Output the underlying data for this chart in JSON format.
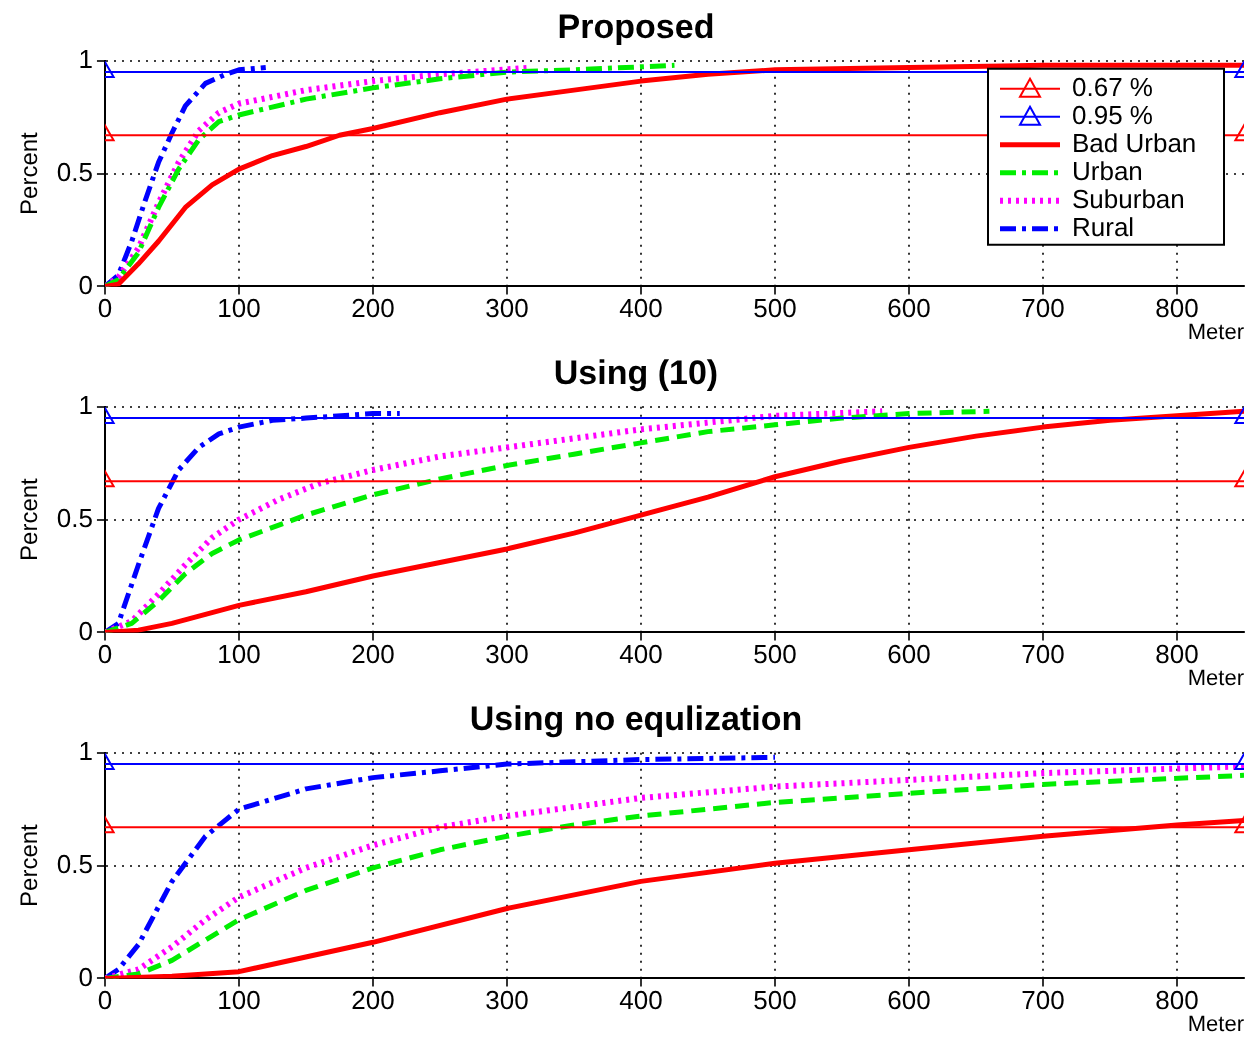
{
  "chart_data": [
    {
      "type": "line",
      "title": "Proposed",
      "xlabel": "Meter",
      "ylabel": "Percent",
      "xlim": [
        0,
        850
      ],
      "ylim": [
        0,
        1
      ],
      "xticks": [
        0,
        100,
        200,
        300,
        400,
        500,
        600,
        700,
        800
      ],
      "yticks": [
        0,
        0.5,
        1
      ],
      "grid": true,
      "legend": "top right",
      "series": [
        {
          "name": "0.67 %",
          "color": "#ff0000",
          "marker": "triangle",
          "line_style": "solid",
          "x": [
            0,
            850
          ],
          "values": [
            0.67,
            0.67
          ]
        },
        {
          "name": "0.95 %",
          "color": "#0000ff",
          "marker": "triangle",
          "line_style": "solid",
          "x": [
            0,
            850
          ],
          "values": [
            0.95,
            0.95
          ]
        },
        {
          "name": "Bad Urban",
          "color": "#ff0000",
          "line_style": "solid",
          "x": [
            0,
            10,
            25,
            40,
            60,
            80,
            100,
            125,
            150,
            175,
            200,
            250,
            300,
            350,
            400,
            450,
            500,
            600,
            700,
            850
          ],
          "values": [
            0,
            0.01,
            0.1,
            0.2,
            0.35,
            0.45,
            0.52,
            0.58,
            0.62,
            0.67,
            0.7,
            0.77,
            0.83,
            0.87,
            0.91,
            0.94,
            0.96,
            0.97,
            0.98,
            0.98
          ]
        },
        {
          "name": "Urban",
          "color": "#00ee00",
          "line_style": "dashdot",
          "x": [
            0,
            10,
            25,
            40,
            55,
            70,
            85,
            100,
            150,
            200,
            250,
            300,
            350,
            425
          ],
          "values": [
            0,
            0.03,
            0.15,
            0.35,
            0.52,
            0.65,
            0.73,
            0.76,
            0.83,
            0.88,
            0.92,
            0.95,
            0.96,
            0.98
          ]
        },
        {
          "name": "Suburban",
          "color": "#ff00ff",
          "line_style": "dotted",
          "x": [
            0,
            10,
            25,
            40,
            55,
            70,
            85,
            100,
            150,
            200,
            250,
            318
          ],
          "values": [
            0,
            0.04,
            0.17,
            0.37,
            0.55,
            0.69,
            0.77,
            0.81,
            0.87,
            0.91,
            0.94,
            0.97
          ]
        },
        {
          "name": "Rural",
          "color": "#0000ff",
          "line_style": "dashdot",
          "x": [
            0,
            10,
            20,
            30,
            40,
            50,
            60,
            75,
            90,
            100,
            120
          ],
          "values": [
            0,
            0.05,
            0.2,
            0.38,
            0.55,
            0.68,
            0.8,
            0.9,
            0.94,
            0.96,
            0.97
          ]
        }
      ]
    },
    {
      "type": "line",
      "title": "Using (10)",
      "xlabel": "Meter",
      "ylabel": "Percent",
      "xlim": [
        0,
        850
      ],
      "ylim": [
        0,
        1
      ],
      "xticks": [
        0,
        100,
        200,
        300,
        400,
        500,
        600,
        700,
        800
      ],
      "yticks": [
        0,
        0.5,
        1
      ],
      "grid": true,
      "series": [
        {
          "color": "#ff0000",
          "marker": "triangle",
          "line_style": "solid",
          "x": [
            0,
            850
          ],
          "values": [
            0.67,
            0.67
          ]
        },
        {
          "color": "#0000ff",
          "marker": "triangle",
          "line_style": "solid",
          "x": [
            0,
            850
          ],
          "values": [
            0.95,
            0.95
          ]
        },
        {
          "color": "#ff0000",
          "line_style": "solid",
          "x": [
            0,
            25,
            50,
            75,
            100,
            150,
            200,
            250,
            300,
            350,
            400,
            450,
            500,
            550,
            600,
            650,
            700,
            750,
            800,
            850
          ],
          "values": [
            0,
            0.01,
            0.04,
            0.08,
            0.12,
            0.18,
            0.25,
            0.31,
            0.37,
            0.44,
            0.52,
            0.6,
            0.69,
            0.76,
            0.82,
            0.87,
            0.91,
            0.94,
            0.96,
            0.98
          ]
        },
        {
          "color": "#00ee00",
          "line_style": "dashed",
          "x": [
            0,
            20,
            40,
            60,
            80,
            100,
            150,
            200,
            250,
            300,
            350,
            400,
            450,
            500,
            550,
            600,
            660
          ],
          "values": [
            0,
            0.04,
            0.14,
            0.26,
            0.35,
            0.41,
            0.52,
            0.61,
            0.68,
            0.74,
            0.79,
            0.84,
            0.89,
            0.92,
            0.95,
            0.97,
            0.98
          ]
        },
        {
          "color": "#ff00ff",
          "line_style": "dotted",
          "x": [
            0,
            20,
            40,
            60,
            80,
            100,
            130,
            160,
            200,
            250,
            300,
            350,
            400,
            450,
            500,
            580
          ],
          "values": [
            0,
            0.05,
            0.17,
            0.3,
            0.42,
            0.5,
            0.59,
            0.66,
            0.72,
            0.78,
            0.82,
            0.86,
            0.9,
            0.93,
            0.96,
            0.98
          ]
        },
        {
          "color": "#0000ff",
          "line_style": "dashdot",
          "x": [
            0,
            10,
            25,
            40,
            55,
            70,
            85,
            100,
            125,
            150,
            200,
            220
          ],
          "values": [
            0,
            0.04,
            0.3,
            0.55,
            0.72,
            0.82,
            0.88,
            0.91,
            0.94,
            0.95,
            0.97,
            0.97
          ]
        }
      ]
    },
    {
      "type": "line",
      "title": "Using no equlization",
      "xlabel": "Meter",
      "ylabel": "Percent",
      "xlim": [
        0,
        850
      ],
      "ylim": [
        0,
        1
      ],
      "xticks": [
        0,
        100,
        200,
        300,
        400,
        500,
        600,
        700,
        800
      ],
      "yticks": [
        0,
        0.5,
        1
      ],
      "grid": true,
      "series": [
        {
          "color": "#ff0000",
          "marker": "triangle",
          "line_style": "solid",
          "x": [
            0,
            850
          ],
          "values": [
            0.67,
            0.67
          ]
        },
        {
          "color": "#0000ff",
          "marker": "triangle",
          "line_style": "solid",
          "x": [
            0,
            850
          ],
          "values": [
            0.95,
            0.95
          ]
        },
        {
          "color": "#ff0000",
          "line_style": "solid",
          "x": [
            0,
            50,
            100,
            200,
            300,
            400,
            500,
            600,
            700,
            800,
            850
          ],
          "values": [
            0,
            0.01,
            0.03,
            0.16,
            0.31,
            0.43,
            0.51,
            0.57,
            0.63,
            0.68,
            0.7
          ]
        },
        {
          "color": "#00ee00",
          "line_style": "dashed",
          "x": [
            0,
            25,
            50,
            75,
            100,
            150,
            200,
            250,
            300,
            350,
            400,
            500,
            600,
            700,
            850
          ],
          "values": [
            0,
            0.02,
            0.08,
            0.17,
            0.26,
            0.39,
            0.49,
            0.57,
            0.63,
            0.68,
            0.72,
            0.78,
            0.82,
            0.86,
            0.9
          ]
        },
        {
          "color": "#ff00ff",
          "line_style": "dotted",
          "x": [
            0,
            25,
            50,
            75,
            100,
            150,
            200,
            250,
            300,
            400,
            500,
            600,
            700,
            850
          ],
          "values": [
            0,
            0.04,
            0.14,
            0.26,
            0.36,
            0.49,
            0.59,
            0.67,
            0.72,
            0.8,
            0.85,
            0.88,
            0.91,
            0.94
          ]
        },
        {
          "color": "#0000ff",
          "line_style": "dashdot",
          "x": [
            0,
            10,
            25,
            50,
            75,
            100,
            150,
            200,
            250,
            300,
            350,
            400,
            500
          ],
          "values": [
            0,
            0.04,
            0.15,
            0.43,
            0.63,
            0.75,
            0.84,
            0.89,
            0.92,
            0.95,
            0.96,
            0.97,
            0.98
          ]
        }
      ]
    }
  ]
}
